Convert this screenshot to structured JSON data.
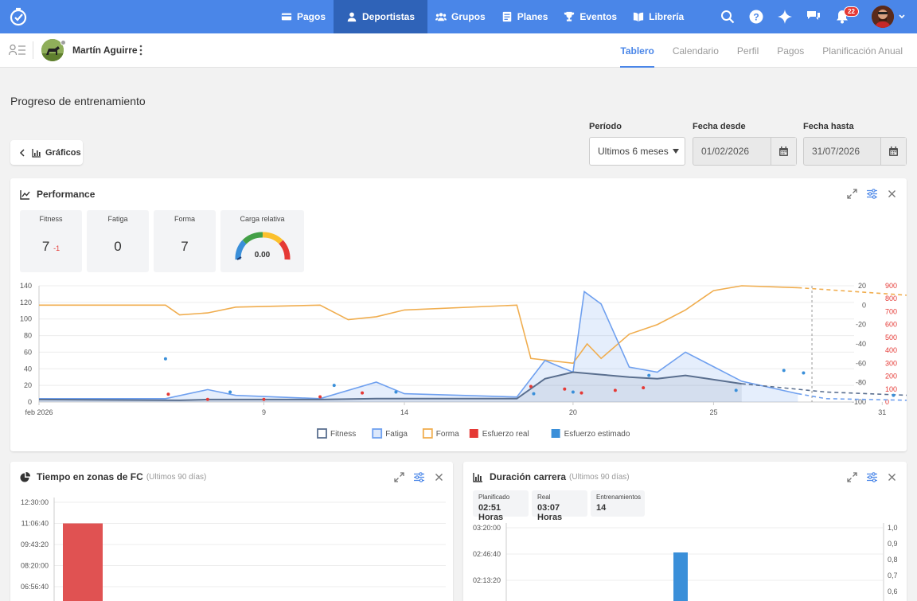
{
  "nav": {
    "items": [
      {
        "label": "Pagos",
        "icon": "payments-icon"
      },
      {
        "label": "Deportistas",
        "icon": "user-icon"
      },
      {
        "label": "Grupos",
        "icon": "group-icon"
      },
      {
        "label": "Planes",
        "icon": "plans-icon"
      },
      {
        "label": "Eventos",
        "icon": "trophy-icon"
      },
      {
        "label": "Librería",
        "icon": "library-icon"
      }
    ],
    "active": "Deportistas",
    "notifications_count": "22",
    "accent": "#4a86e8"
  },
  "athlete": {
    "name": "Martín Aguirre"
  },
  "subtabs": [
    "Tablero",
    "Calendario",
    "Perfil",
    "Pagos",
    "Planificación Anual"
  ],
  "active_subtab": "Tablero",
  "page_title": "Progreso de entrenamiento",
  "back_button": "Gráficos",
  "filters": {
    "period_label": "Período",
    "period_value": "Ultimos 6 meses",
    "from_label": "Fecha desde",
    "from_value": "01/02/2026",
    "to_label": "Fecha hasta",
    "to_value": "31/07/2026"
  },
  "performance": {
    "title": "Performance",
    "metrics": [
      {
        "label": "Fitness",
        "value": "7",
        "delta": "-1"
      },
      {
        "label": "Fatiga",
        "value": "0"
      },
      {
        "label": "Forma",
        "value": "7"
      }
    ],
    "gauge": {
      "label": "Carga relativa",
      "value": "0.00"
    },
    "legend": [
      {
        "name": "Fitness",
        "color": "#5a6f8f"
      },
      {
        "name": "Fatiga",
        "color": "#6fa0ef"
      },
      {
        "name": "Forma",
        "color": "#f0ad4e"
      },
      {
        "name": "Esfuerzo real",
        "color": "#e53935"
      },
      {
        "name": "Esfuerzo estimado",
        "color": "#3a8fd9"
      }
    ],
    "x_ticks": [
      "feb 2026",
      "9",
      "14",
      "20",
      "25",
      "31"
    ],
    "y_left_ticks": [
      "0",
      "20",
      "40",
      "60",
      "80",
      "100",
      "120",
      "140"
    ],
    "y_mid_ticks": [
      "-100",
      "-80",
      "-60",
      "-40",
      "-20",
      "0",
      "20"
    ],
    "y_right_ticks": [
      "0",
      "100",
      "200",
      "300",
      "400",
      "500",
      "600",
      "700",
      "800",
      "900"
    ]
  },
  "zones": {
    "title": "Tiempo en zonas de FC",
    "subtitle": "(Ultimos 90 días)",
    "y_ticks": [
      "12:30:00",
      "11:06:40",
      "09:43:20",
      "08:20:00",
      "06:56:40"
    ],
    "bar_color": "#e05252",
    "bar_value": "11:06:40"
  },
  "duration": {
    "title": "Duración carrera",
    "subtitle": "(Ultimos 90 días)",
    "stats": [
      {
        "label": "Planificado",
        "value": "02:51 Horas"
      },
      {
        "label": "Real",
        "value": "03:07 Horas"
      },
      {
        "label": "Entrenamientos",
        "value": "14"
      }
    ],
    "y_left_ticks": [
      "03:20:00",
      "02:46:40",
      "02:13:20"
    ],
    "y_right_ticks": [
      "1,0",
      "0,9",
      "0,8",
      "0,7",
      "0,6"
    ],
    "bar_color": "#3a8fd9",
    "bar_value": "02:46:40"
  },
  "chart_data": {
    "type": "line",
    "title": "Performance",
    "x_range": [
      "2026-02-01",
      "2026-03-02"
    ],
    "series": [
      {
        "name": "Fitness",
        "axis": "left",
        "points": [
          [
            0,
            3
          ],
          [
            5,
            2
          ],
          [
            6,
            3
          ],
          [
            7,
            3
          ],
          [
            10,
            3
          ],
          [
            12,
            4
          ],
          [
            14,
            4
          ],
          [
            17,
            4
          ],
          [
            18,
            28
          ],
          [
            19,
            36
          ],
          [
            20,
            33
          ],
          [
            21,
            30
          ],
          [
            22,
            28
          ],
          [
            23,
            32
          ],
          [
            25,
            22
          ],
          [
            28,
            12
          ],
          [
            31,
            8
          ],
          [
            33,
            4
          ]
        ]
      },
      {
        "name": "Fatiga",
        "axis": "left",
        "points": [
          [
            0,
            4
          ],
          [
            4.5,
            4
          ],
          [
            6,
            15
          ],
          [
            7,
            8
          ],
          [
            10,
            4
          ],
          [
            12,
            24
          ],
          [
            13,
            10
          ],
          [
            17,
            6
          ],
          [
            18,
            50
          ],
          [
            18.5,
            43
          ],
          [
            19,
            36
          ],
          [
            19.4,
            133
          ],
          [
            20,
            118
          ],
          [
            21,
            42
          ],
          [
            22,
            36
          ],
          [
            23,
            60
          ],
          [
            25,
            25
          ],
          [
            27,
            10
          ],
          [
            28,
            4
          ],
          [
            31,
            2
          ],
          [
            33,
            1
          ]
        ]
      },
      {
        "name": "Forma",
        "axis": "mid",
        "points": [
          [
            0,
            0
          ],
          [
            4.5,
            0
          ],
          [
            5,
            -10
          ],
          [
            6,
            -8
          ],
          [
            7,
            -2
          ],
          [
            10,
            0
          ],
          [
            11,
            -15
          ],
          [
            12,
            -12
          ],
          [
            13,
            -5
          ],
          [
            17,
            0
          ],
          [
            17.5,
            -55
          ],
          [
            19,
            -60
          ],
          [
            19.5,
            -40
          ],
          [
            20,
            -55
          ],
          [
            21,
            -30
          ],
          [
            22,
            -20
          ],
          [
            23,
            -5
          ],
          [
            24,
            15
          ],
          [
            25,
            20
          ],
          [
            27,
            18
          ],
          [
            30,
            12
          ],
          [
            31,
            10
          ],
          [
            33,
            7
          ]
        ]
      },
      {
        "name": "Esfuerzo real",
        "axis": "right",
        "points": [
          [
            4.6,
            60
          ],
          [
            6,
            20
          ],
          [
            8,
            20
          ],
          [
            10,
            40
          ],
          [
            11.5,
            70
          ],
          [
            17.5,
            120
          ],
          [
            18.7,
            100
          ],
          [
            19.3,
            70
          ],
          [
            20.5,
            90
          ],
          [
            21.5,
            110
          ]
        ]
      },
      {
        "name": "Esfuerzo estimado",
        "axis": "left",
        "points": [
          [
            4.5,
            52
          ],
          [
            6.8,
            12
          ],
          [
            10.5,
            20
          ],
          [
            12.7,
            12
          ],
          [
            17.6,
            10
          ],
          [
            19,
            12
          ],
          [
            21.7,
            32
          ],
          [
            24.8,
            14
          ],
          [
            26.5,
            38
          ],
          [
            27.2,
            35
          ],
          [
            30.4,
            8
          ]
        ]
      }
    ],
    "y_left_range": [
      0,
      140
    ],
    "y_mid_range": [
      -100,
      20
    ],
    "y_right_range": [
      0,
      900
    ],
    "forecast_from": "2026-03-01"
  }
}
